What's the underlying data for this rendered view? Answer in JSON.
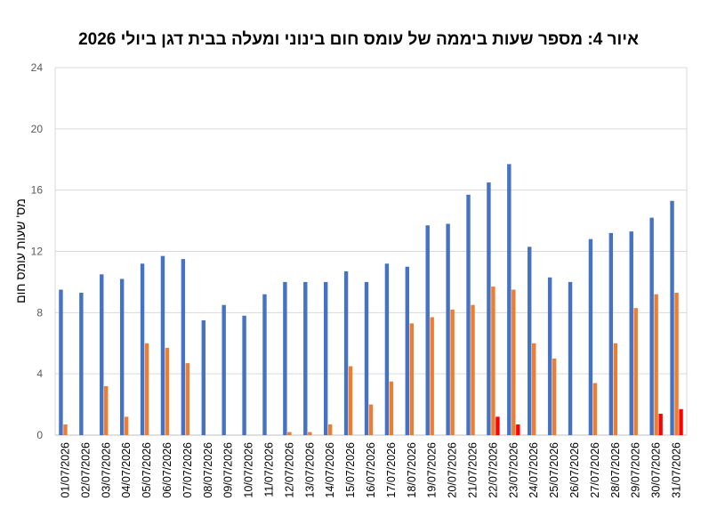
{
  "chart_data": {
    "type": "bar",
    "title": "איור 4: מספר שעות ביממה של עומס חום בינוני ומעלה בבית דגן ביולי 2026",
    "ylabel": "מס' שעות עומס חום",
    "xlabel": "",
    "ylim": [
      0,
      24
    ],
    "yticks": [
      0,
      4,
      8,
      12,
      16,
      20,
      24
    ],
    "grid": true,
    "legend": "none",
    "categories": [
      "01/07/2026",
      "02/07/2026",
      "03/07/2026",
      "04/07/2026",
      "05/07/2026",
      "06/07/2026",
      "07/07/2026",
      "08/07/2026",
      "09/07/2026",
      "10/07/2026",
      "11/07/2026",
      "12/07/2026",
      "13/07/2026",
      "14/07/2026",
      "15/07/2026",
      "16/07/2026",
      "17/07/2026",
      "18/07/2026",
      "19/07/2026",
      "20/07/2026",
      "21/07/2026",
      "22/07/2026",
      "23/07/2026",
      "24/07/2026",
      "25/07/2026",
      "26/07/2026",
      "27/07/2026",
      "28/07/2026",
      "29/07/2026",
      "30/07/2026",
      "31/07/2026"
    ],
    "series": [
      {
        "color": "#4472c4",
        "values": [
          9.5,
          9.3,
          10.5,
          10.2,
          11.2,
          11.7,
          11.5,
          7.5,
          8.5,
          7.8,
          9.2,
          10.0,
          10.0,
          10.0,
          10.7,
          10.0,
          11.2,
          11.0,
          13.7,
          13.8,
          15.7,
          16.5,
          17.7,
          12.3,
          10.3,
          10.0,
          12.8,
          13.2,
          13.3,
          14.2,
          15.3
        ]
      },
      {
        "color": "#ed7d31",
        "values": [
          0.7,
          0,
          3.2,
          1.2,
          6.0,
          5.7,
          4.7,
          0,
          0,
          0,
          0,
          0.2,
          0.2,
          0.7,
          4.5,
          2.0,
          3.5,
          7.3,
          7.7,
          8.2,
          8.5,
          9.7,
          9.5,
          6.0,
          5.0,
          0,
          3.4,
          6.0,
          8.3,
          9.2,
          9.3
        ]
      },
      {
        "color": "#ff0000",
        "values": [
          0,
          0,
          0,
          0,
          0,
          0,
          0,
          0,
          0,
          0,
          0,
          0,
          0,
          0,
          0,
          0,
          0,
          0,
          0,
          0,
          0,
          1.2,
          0.7,
          0,
          0,
          0,
          0,
          0,
          0,
          1.4,
          1.7
        ]
      }
    ]
  }
}
